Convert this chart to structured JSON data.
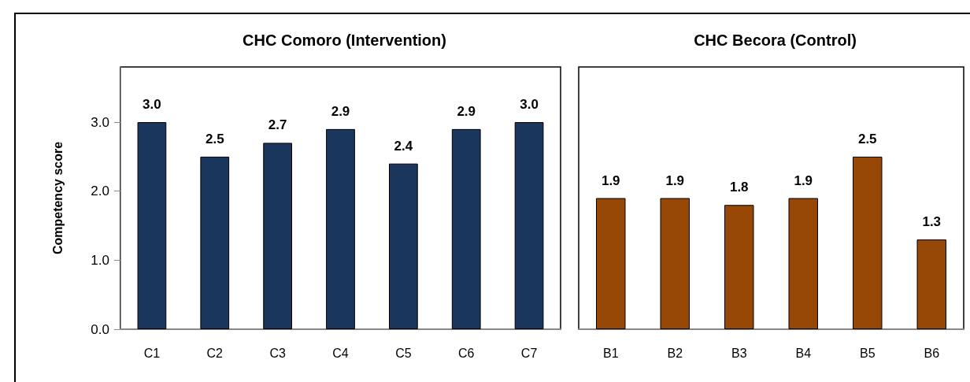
{
  "chart_data": [
    {
      "type": "bar",
      "title": "CHC Comoro (Intervention)",
      "ylabel": "Competency score",
      "categories": [
        "C1",
        "C2",
        "C3",
        "C4",
        "C5",
        "C6",
        "C7"
      ],
      "values": [
        3.0,
        2.5,
        2.7,
        2.9,
        2.4,
        2.9,
        3.0
      ],
      "value_labels": [
        "3.0",
        "2.5",
        "2.7",
        "2.9",
        "2.4",
        "2.9",
        "3.0"
      ],
      "color": "#1b365d",
      "ylim": [
        0,
        3.8
      ],
      "yticks": [
        {
          "value": 0,
          "label": "0.0"
        },
        {
          "value": 1,
          "label": "1.0"
        },
        {
          "value": 2,
          "label": "2.0"
        },
        {
          "value": 3,
          "label": "3.0"
        }
      ],
      "grid": false
    },
    {
      "type": "bar",
      "title": "CHC Becora (Control)",
      "categories": [
        "B1",
        "B2",
        "B3",
        "B4",
        "B5",
        "B6"
      ],
      "values": [
        1.9,
        1.9,
        1.8,
        1.9,
        2.5,
        1.3
      ],
      "value_labels": [
        "1.9",
        "1.9",
        "1.8",
        "1.9",
        "2.5",
        "1.3"
      ],
      "color": "#974706",
      "ylim": [
        0,
        3.8
      ],
      "tick_labels": "x",
      "grid": false
    }
  ]
}
